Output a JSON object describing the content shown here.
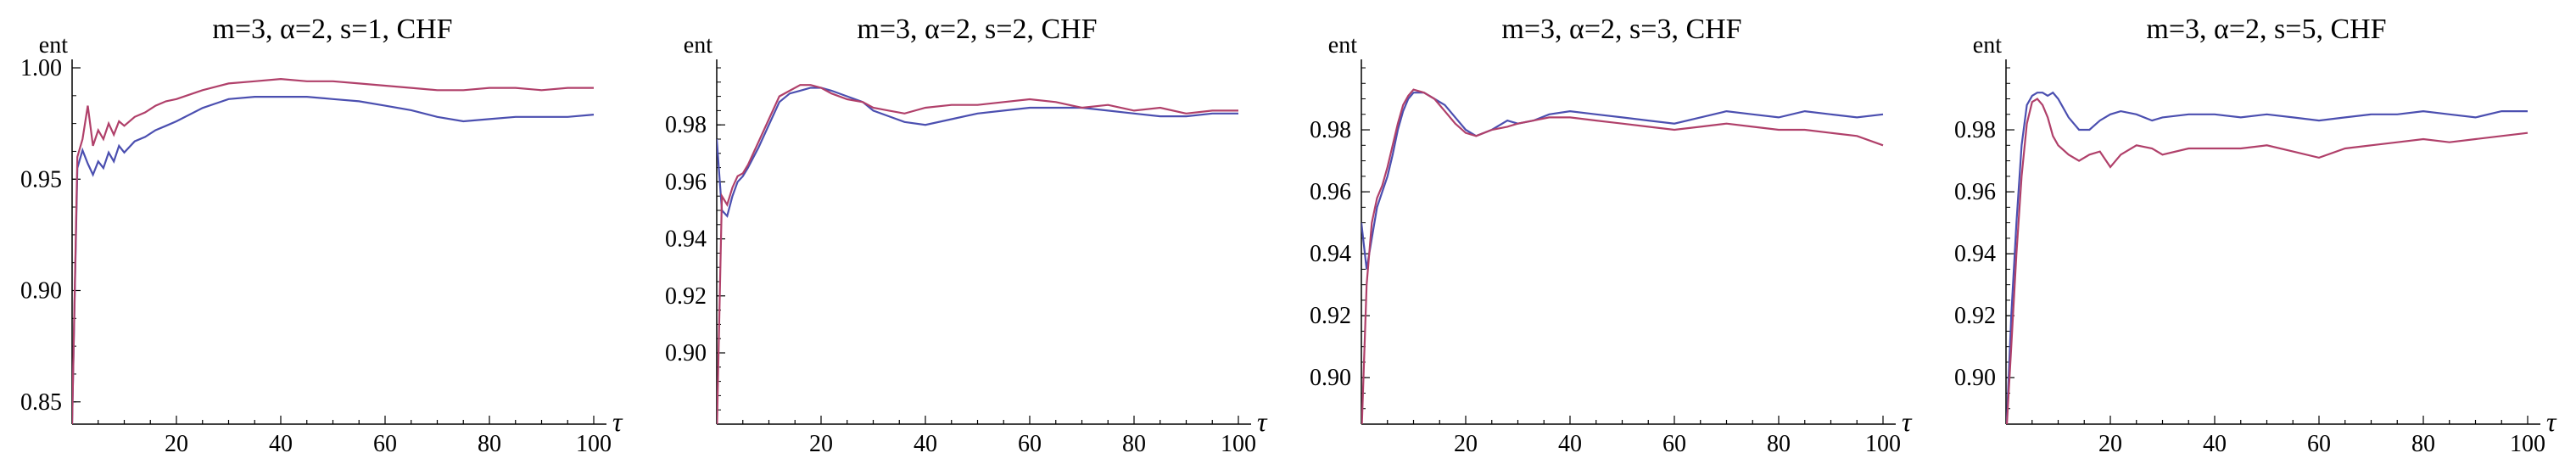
{
  "chart_data": [
    {
      "type": "line",
      "title": "m=3, α=2, s=1, CHF",
      "ylabel": "ent",
      "xlabel": "τ",
      "xlim": [
        0,
        100
      ],
      "ylim": [
        0.84,
        1.0
      ],
      "xticks": [
        "20",
        "40",
        "60",
        "80",
        "100"
      ],
      "yticks": [
        "0.85",
        "0.90",
        "0.95",
        "1.00"
      ],
      "grid": false,
      "x": [
        0,
        1,
        2,
        3,
        4,
        5,
        6,
        7,
        8,
        9,
        10,
        12,
        14,
        16,
        18,
        20,
        25,
        30,
        35,
        40,
        45,
        50,
        55,
        60,
        65,
        70,
        75,
        80,
        85,
        90,
        95,
        100
      ],
      "series": [
        {
          "color": "#4b4fb0",
          "values": [
            0.84,
            0.955,
            0.963,
            0.957,
            0.952,
            0.958,
            0.955,
            0.962,
            0.958,
            0.965,
            0.962,
            0.967,
            0.969,
            0.972,
            0.974,
            0.976,
            0.982,
            0.986,
            0.987,
            0.987,
            0.987,
            0.986,
            0.985,
            0.983,
            0.981,
            0.978,
            0.976,
            0.977,
            0.978,
            0.978,
            0.978,
            0.979
          ]
        },
        {
          "color": "#b0406a",
          "values": [
            0.84,
            0.96,
            0.968,
            0.983,
            0.965,
            0.972,
            0.968,
            0.975,
            0.97,
            0.976,
            0.974,
            0.978,
            0.98,
            0.983,
            0.985,
            0.986,
            0.99,
            0.993,
            0.994,
            0.995,
            0.994,
            0.994,
            0.993,
            0.992,
            0.991,
            0.99,
            0.99,
            0.991,
            0.991,
            0.99,
            0.991,
            0.991
          ]
        }
      ]
    },
    {
      "type": "line",
      "title": "m=3, α=2, s=2, CHF",
      "ylabel": "ent",
      "xlabel": "τ",
      "xlim": [
        0,
        100
      ],
      "ylim": [
        0.875,
        1.0
      ],
      "xticks": [
        "20",
        "40",
        "60",
        "80",
        "100"
      ],
      "yticks": [
        "0.90",
        "0.92",
        "0.94",
        "0.96",
        "0.98"
      ],
      "grid": false,
      "x": [
        0,
        1,
        2,
        3,
        4,
        5,
        6,
        8,
        10,
        12,
        14,
        16,
        18,
        20,
        22,
        25,
        28,
        30,
        33,
        36,
        40,
        45,
        50,
        55,
        60,
        65,
        70,
        75,
        80,
        85,
        90,
        95,
        100
      ],
      "series": [
        {
          "color": "#4b4fb0",
          "values": [
            0.975,
            0.95,
            0.948,
            0.955,
            0.96,
            0.962,
            0.965,
            0.972,
            0.98,
            0.988,
            0.991,
            0.992,
            0.993,
            0.993,
            0.992,
            0.99,
            0.988,
            0.985,
            0.983,
            0.981,
            0.98,
            0.982,
            0.984,
            0.985,
            0.986,
            0.986,
            0.986,
            0.985,
            0.984,
            0.983,
            0.983,
            0.984,
            0.984
          ]
        },
        {
          "color": "#b0406a",
          "values": [
            0.87,
            0.955,
            0.952,
            0.958,
            0.962,
            0.963,
            0.966,
            0.974,
            0.982,
            0.99,
            0.992,
            0.994,
            0.994,
            0.993,
            0.991,
            0.989,
            0.988,
            0.986,
            0.985,
            0.984,
            0.986,
            0.987,
            0.987,
            0.988,
            0.989,
            0.988,
            0.986,
            0.987,
            0.985,
            0.986,
            0.984,
            0.985,
            0.985
          ]
        }
      ]
    },
    {
      "type": "line",
      "title": "m=3, α=2, s=3, CHF",
      "ylabel": "ent",
      "xlabel": "τ",
      "xlim": [
        0,
        100
      ],
      "ylim": [
        0.885,
        1.0
      ],
      "xticks": [
        "20",
        "40",
        "60",
        "80",
        "100"
      ],
      "yticks": [
        "0.90",
        "0.92",
        "0.94",
        "0.96",
        "0.98"
      ],
      "grid": false,
      "x": [
        0,
        1,
        2,
        3,
        4,
        5,
        6,
        7,
        8,
        9,
        10,
        12,
        14,
        16,
        18,
        20,
        22,
        25,
        28,
        30,
        33,
        36,
        40,
        45,
        50,
        55,
        60,
        65,
        70,
        75,
        80,
        85,
        90,
        95,
        100
      ],
      "series": [
        {
          "color": "#4b4fb0",
          "values": [
            0.95,
            0.935,
            0.945,
            0.955,
            0.96,
            0.965,
            0.972,
            0.98,
            0.986,
            0.99,
            0.992,
            0.992,
            0.99,
            0.988,
            0.984,
            0.98,
            0.978,
            0.98,
            0.983,
            0.982,
            0.983,
            0.985,
            0.986,
            0.985,
            0.984,
            0.983,
            0.982,
            0.984,
            0.986,
            0.985,
            0.984,
            0.986,
            0.985,
            0.984,
            0.985
          ]
        },
        {
          "color": "#b0406a",
          "values": [
            0.88,
            0.93,
            0.95,
            0.958,
            0.962,
            0.968,
            0.975,
            0.982,
            0.988,
            0.991,
            0.993,
            0.992,
            0.99,
            0.986,
            0.982,
            0.979,
            0.978,
            0.98,
            0.981,
            0.982,
            0.983,
            0.984,
            0.984,
            0.983,
            0.982,
            0.981,
            0.98,
            0.981,
            0.982,
            0.981,
            0.98,
            0.98,
            0.979,
            0.978,
            0.975
          ]
        }
      ]
    },
    {
      "type": "line",
      "title": "m=3, α=2, s=5, CHF",
      "ylabel": "ent",
      "xlabel": "τ",
      "xlim": [
        0,
        100
      ],
      "ylim": [
        0.885,
        1.0
      ],
      "xticks": [
        "20",
        "40",
        "60",
        "80",
        "100"
      ],
      "yticks": [
        "0.90",
        "0.92",
        "0.94",
        "0.96",
        "0.98"
      ],
      "grid": false,
      "x": [
        0,
        1,
        2,
        3,
        4,
        5,
        6,
        7,
        8,
        9,
        10,
        12,
        14,
        16,
        18,
        20,
        22,
        25,
        28,
        30,
        35,
        40,
        45,
        50,
        55,
        60,
        65,
        70,
        75,
        80,
        85,
        90,
        95,
        100
      ],
      "series": [
        {
          "color": "#4b4fb0",
          "values": [
            0.88,
            0.92,
            0.95,
            0.975,
            0.988,
            0.991,
            0.992,
            0.992,
            0.991,
            0.992,
            0.99,
            0.984,
            0.98,
            0.98,
            0.983,
            0.985,
            0.986,
            0.985,
            0.983,
            0.984,
            0.985,
            0.985,
            0.984,
            0.985,
            0.984,
            0.983,
            0.984,
            0.985,
            0.985,
            0.986,
            0.985,
            0.984,
            0.986,
            0.986
          ]
        },
        {
          "color": "#b0406a",
          "values": [
            0.88,
            0.91,
            0.94,
            0.965,
            0.982,
            0.989,
            0.99,
            0.988,
            0.984,
            0.978,
            0.975,
            0.972,
            0.97,
            0.972,
            0.973,
            0.968,
            0.972,
            0.975,
            0.974,
            0.972,
            0.974,
            0.974,
            0.974,
            0.975,
            0.973,
            0.971,
            0.974,
            0.975,
            0.976,
            0.977,
            0.976,
            0.977,
            0.978,
            0.979
          ]
        }
      ]
    }
  ]
}
